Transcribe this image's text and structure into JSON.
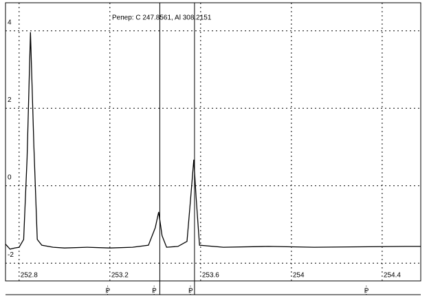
{
  "chart_data": {
    "type": "line",
    "annotation": "Pепер: C  247.8561, Al  308.2151",
    "xlim": [
      252.74,
      254.57
    ],
    "ylim": [
      -2.67,
      4.44
    ],
    "xticks": [
      252.8,
      253.2,
      253.6,
      254,
      254.4
    ],
    "yticks": [
      4,
      2,
      0,
      -2
    ],
    "grid": true,
    "series": [
      {
        "color": "#000000",
        "x": [
          252.74,
          252.76,
          252.78,
          252.8,
          252.82,
          252.835,
          252.85,
          252.865,
          252.88,
          252.9,
          252.95,
          253.0,
          253.1,
          253.2,
          253.3,
          253.37,
          253.4,
          253.415,
          253.43,
          253.45,
          253.5,
          253.54,
          253.555,
          253.57,
          253.58,
          253.595,
          253.7,
          253.9,
          254.1,
          254.3,
          254.5,
          254.57
        ],
        "values": [
          -1.72,
          -1.85,
          -1.82,
          -1.8,
          -1.6,
          0.5,
          3.75,
          0.8,
          -1.6,
          -1.75,
          -1.8,
          -1.82,
          -1.8,
          -1.82,
          -1.8,
          -1.75,
          -1.3,
          -0.89,
          -1.5,
          -1.8,
          -1.78,
          -1.65,
          -0.6,
          0.46,
          -0.5,
          -1.75,
          -1.8,
          -1.78,
          -1.8,
          -1.79,
          -1.78,
          -1.78
        ]
      }
    ],
    "cursors": [
      253.42,
      253.573
    ],
    "markers": [
      {
        "x": 253.19,
        "label": "P"
      },
      {
        "x": 253.395,
        "label": "P"
      },
      {
        "x": 253.555,
        "label": "P"
      },
      {
        "x": 254.33,
        "label": "P"
      }
    ]
  }
}
